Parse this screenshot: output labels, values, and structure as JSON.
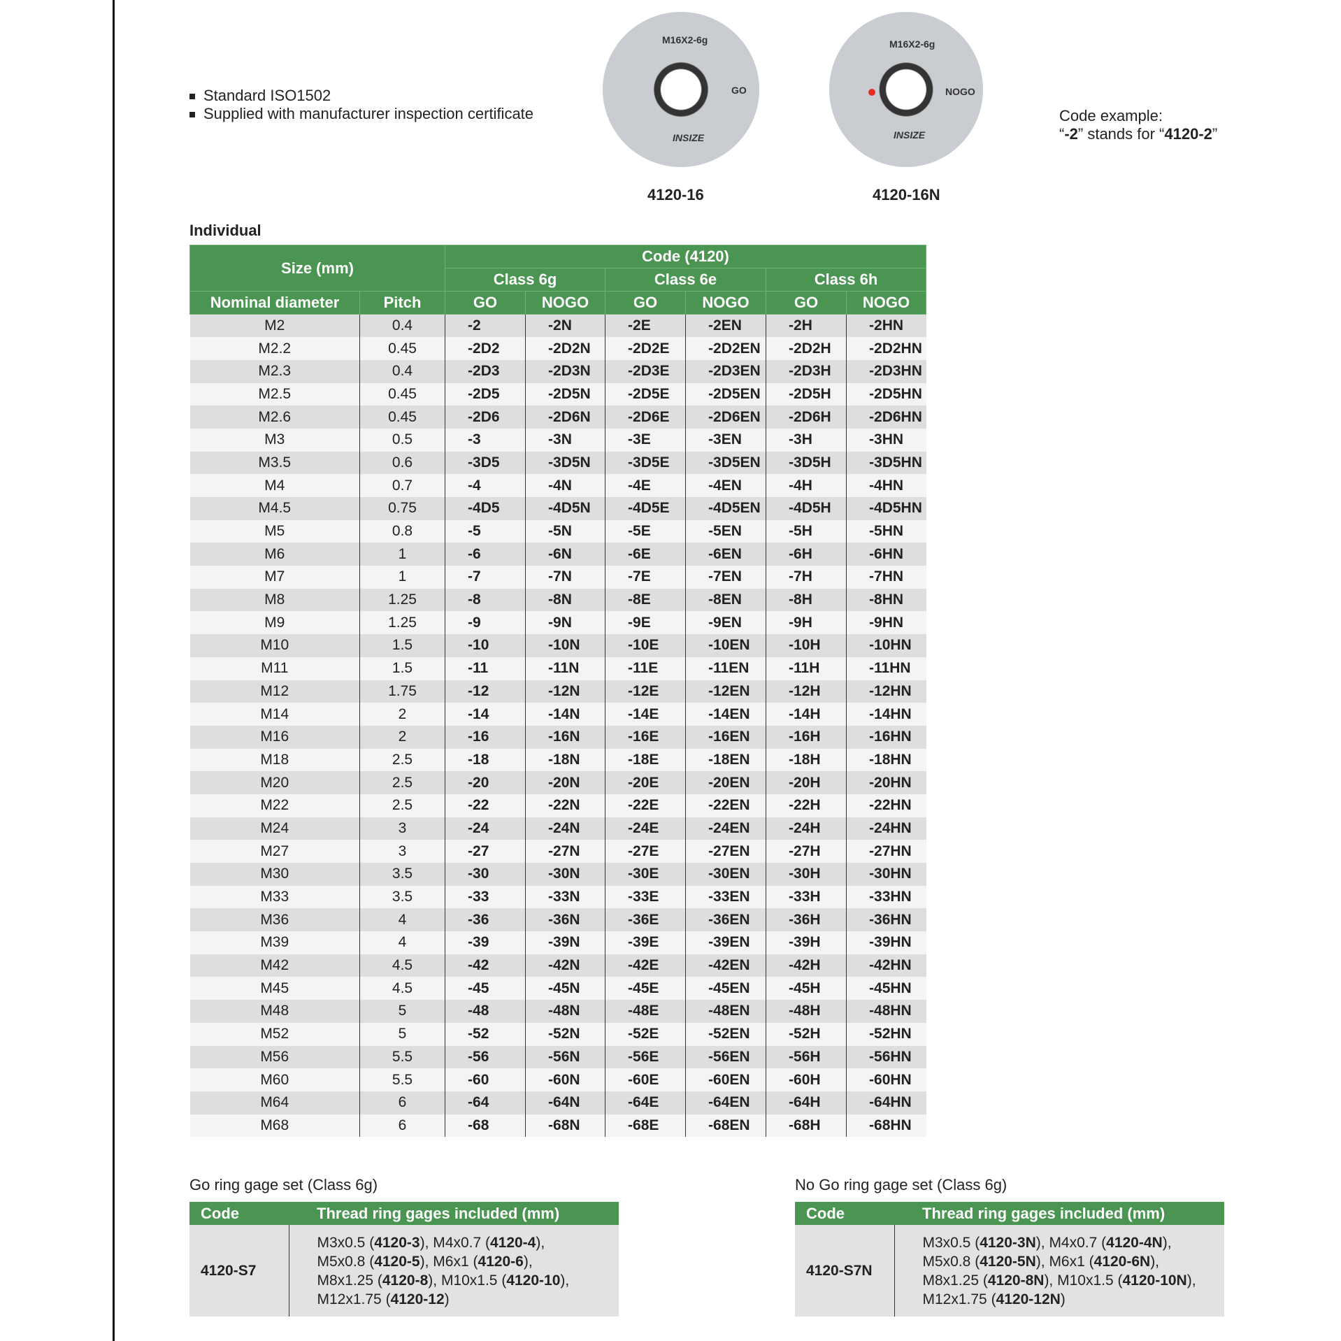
{
  "bullets": [
    "Standard ISO1502",
    "Supplied with manufacturer inspection certificate"
  ],
  "gauges": [
    {
      "marking": "M16X2-6g",
      "side": "GO",
      "brand": "INSIZE",
      "label": "4120-16"
    },
    {
      "marking": "M16X2-6g",
      "side": "NOGO",
      "brand": "INSIZE",
      "label": "4120-16N"
    }
  ],
  "code_example": {
    "line1": "Code example:",
    "pre": "“",
    "code": "-2",
    "mid": "” stands for “",
    "full": "4120-2",
    "post": "”"
  },
  "individual": {
    "title": "Individual",
    "headers": {
      "size": "Size (mm)",
      "code": "Code (4120)",
      "classes": [
        "Class 6g",
        "Class 6e",
        "Class 6h"
      ],
      "nominal": "Nominal diameter",
      "pitch": "Pitch",
      "go": "GO",
      "nogo": "NOGO"
    },
    "rows": [
      [
        "M2",
        "0.4",
        "-2",
        "-2N",
        "-2E",
        "-2EN",
        "-2H",
        "-2HN"
      ],
      [
        "M2.2",
        "0.45",
        "-2D2",
        "-2D2N",
        "-2D2E",
        "-2D2EN",
        "-2D2H",
        "-2D2HN"
      ],
      [
        "M2.3",
        "0.4",
        "-2D3",
        "-2D3N",
        "-2D3E",
        "-2D3EN",
        "-2D3H",
        "-2D3HN"
      ],
      [
        "M2.5",
        "0.45",
        "-2D5",
        "-2D5N",
        "-2D5E",
        "-2D5EN",
        "-2D5H",
        "-2D5HN"
      ],
      [
        "M2.6",
        "0.45",
        "-2D6",
        "-2D6N",
        "-2D6E",
        "-2D6EN",
        "-2D6H",
        "-2D6HN"
      ],
      [
        "M3",
        "0.5",
        "-3",
        "-3N",
        "-3E",
        "-3EN",
        "-3H",
        "-3HN"
      ],
      [
        "M3.5",
        "0.6",
        "-3D5",
        "-3D5N",
        "-3D5E",
        "-3D5EN",
        "-3D5H",
        "-3D5HN"
      ],
      [
        "M4",
        "0.7",
        "-4",
        "-4N",
        "-4E",
        "-4EN",
        "-4H",
        "-4HN"
      ],
      [
        "M4.5",
        "0.75",
        "-4D5",
        "-4D5N",
        "-4D5E",
        "-4D5EN",
        "-4D5H",
        "-4D5HN"
      ],
      [
        "M5",
        "0.8",
        "-5",
        "-5N",
        "-5E",
        "-5EN",
        "-5H",
        "-5HN"
      ],
      [
        "M6",
        "1",
        "-6",
        "-6N",
        "-6E",
        "-6EN",
        "-6H",
        "-6HN"
      ],
      [
        "M7",
        "1",
        "-7",
        "-7N",
        "-7E",
        "-7EN",
        "-7H",
        "-7HN"
      ],
      [
        "M8",
        "1.25",
        "-8",
        "-8N",
        "-8E",
        "-8EN",
        "-8H",
        "-8HN"
      ],
      [
        "M9",
        "1.25",
        "-9",
        "-9N",
        "-9E",
        "-9EN",
        "-9H",
        "-9HN"
      ],
      [
        "M10",
        "1.5",
        "-10",
        "-10N",
        "-10E",
        "-10EN",
        "-10H",
        "-10HN"
      ],
      [
        "M11",
        "1.5",
        "-11",
        "-11N",
        "-11E",
        "-11EN",
        "-11H",
        "-11HN"
      ],
      [
        "M12",
        "1.75",
        "-12",
        "-12N",
        "-12E",
        "-12EN",
        "-12H",
        "-12HN"
      ],
      [
        "M14",
        "2",
        "-14",
        "-14N",
        "-14E",
        "-14EN",
        "-14H",
        "-14HN"
      ],
      [
        "M16",
        "2",
        "-16",
        "-16N",
        "-16E",
        "-16EN",
        "-16H",
        "-16HN"
      ],
      [
        "M18",
        "2.5",
        "-18",
        "-18N",
        "-18E",
        "-18EN",
        "-18H",
        "-18HN"
      ],
      [
        "M20",
        "2.5",
        "-20",
        "-20N",
        "-20E",
        "-20EN",
        "-20H",
        "-20HN"
      ],
      [
        "M22",
        "2.5",
        "-22",
        "-22N",
        "-22E",
        "-22EN",
        "-22H",
        "-22HN"
      ],
      [
        "M24",
        "3",
        "-24",
        "-24N",
        "-24E",
        "-24EN",
        "-24H",
        "-24HN"
      ],
      [
        "M27",
        "3",
        "-27",
        "-27N",
        "-27E",
        "-27EN",
        "-27H",
        "-27HN"
      ],
      [
        "M30",
        "3.5",
        "-30",
        "-30N",
        "-30E",
        "-30EN",
        "-30H",
        "-30HN"
      ],
      [
        "M33",
        "3.5",
        "-33",
        "-33N",
        "-33E",
        "-33EN",
        "-33H",
        "-33HN"
      ],
      [
        "M36",
        "4",
        "-36",
        "-36N",
        "-36E",
        "-36EN",
        "-36H",
        "-36HN"
      ],
      [
        "M39",
        "4",
        "-39",
        "-39N",
        "-39E",
        "-39EN",
        "-39H",
        "-39HN"
      ],
      [
        "M42",
        "4.5",
        "-42",
        "-42N",
        "-42E",
        "-42EN",
        "-42H",
        "-42HN"
      ],
      [
        "M45",
        "4.5",
        "-45",
        "-45N",
        "-45E",
        "-45EN",
        "-45H",
        "-45HN"
      ],
      [
        "M48",
        "5",
        "-48",
        "-48N",
        "-48E",
        "-48EN",
        "-48H",
        "-48HN"
      ],
      [
        "M52",
        "5",
        "-52",
        "-52N",
        "-52E",
        "-52EN",
        "-52H",
        "-52HN"
      ],
      [
        "M56",
        "5.5",
        "-56",
        "-56N",
        "-56E",
        "-56EN",
        "-56H",
        "-56HN"
      ],
      [
        "M60",
        "5.5",
        "-60",
        "-60N",
        "-60E",
        "-60EN",
        "-60H",
        "-60HN"
      ],
      [
        "M64",
        "6",
        "-64",
        "-64N",
        "-64E",
        "-64EN",
        "-64H",
        "-64HN"
      ],
      [
        "M68",
        "6",
        "-68",
        "-68N",
        "-68E",
        "-68EN",
        "-68H",
        "-68HN"
      ]
    ]
  },
  "sets": [
    {
      "title": "Go ring gage set (Class 6g)",
      "code_header": "Code",
      "included_header": "Thread ring gages included (mm)",
      "code": "4120-S7",
      "items": [
        [
          "M3x0.5",
          "4120-3"
        ],
        [
          "M4x0.7",
          "4120-4"
        ],
        [
          "M5x0.8",
          "4120-5"
        ],
        [
          "M6x1",
          "4120-6"
        ],
        [
          "M8x1.25",
          "4120-8"
        ],
        [
          "M10x1.5",
          "4120-10"
        ],
        [
          "M12x1.75",
          "4120-12"
        ]
      ]
    },
    {
      "title": "No Go ring gage set (Class 6g)",
      "code_header": "Code",
      "included_header": "Thread ring gages included (mm)",
      "code": "4120-S7N",
      "items": [
        [
          "M3x0.5",
          "4120-3N"
        ],
        [
          "M4x0.7",
          "4120-4N"
        ],
        [
          "M5x0.8",
          "4120-5N"
        ],
        [
          "M6x1",
          "4120-6N"
        ],
        [
          "M8x1.25",
          "4120-8N"
        ],
        [
          "M10x1.5",
          "4120-10N"
        ],
        [
          "M12x1.75",
          "4120-12N"
        ]
      ]
    }
  ],
  "colors": {
    "header_green": "#4a9552",
    "row_gray": "#dedede",
    "row_light": "#f4f4f4",
    "nogo_dot": "#e53020"
  }
}
